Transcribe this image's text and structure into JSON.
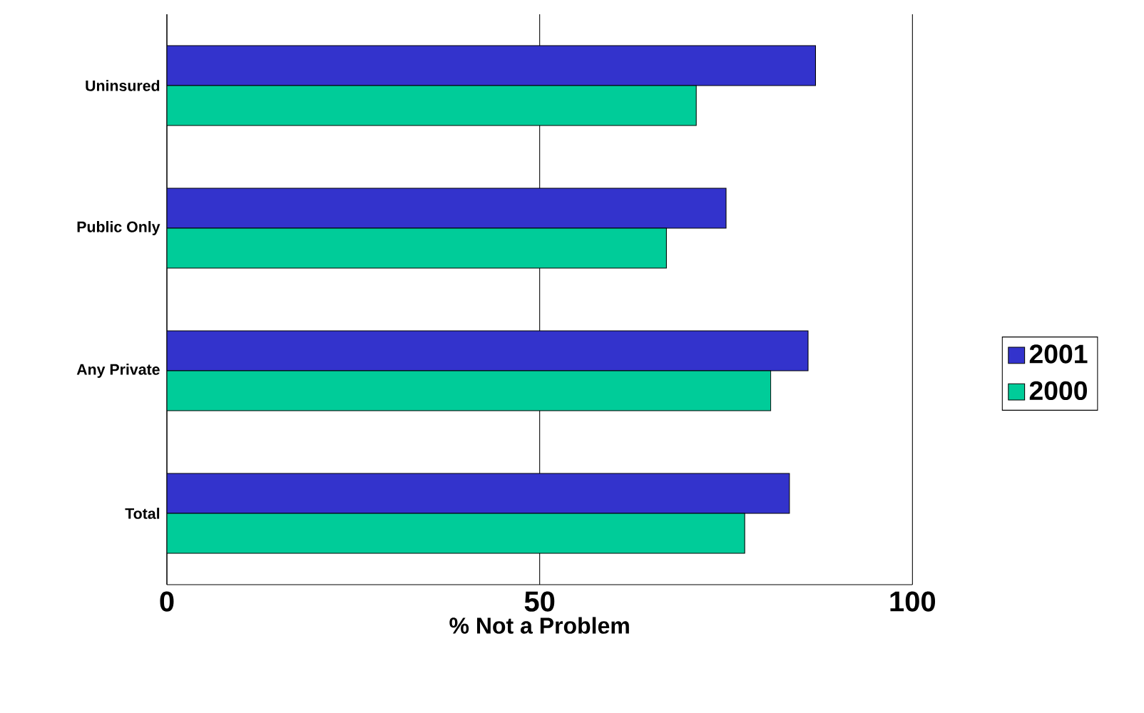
{
  "chart_data": {
    "type": "bar",
    "orientation": "horizontal",
    "xlabel": "% Not a Problem",
    "categories": [
      "Uninsured",
      "Public Only",
      "Any Private",
      "Total"
    ],
    "series": [
      {
        "name": "2001",
        "color": "#3333cc",
        "values": [
          87,
          75,
          86,
          83.5
        ]
      },
      {
        "name": "2000",
        "color": "#00cc99",
        "values": [
          71,
          67,
          81,
          77.5
        ]
      }
    ],
    "xlim": [
      0,
      100
    ],
    "xticks": [
      0,
      50,
      100
    ],
    "grid": "x",
    "legend": "right"
  }
}
